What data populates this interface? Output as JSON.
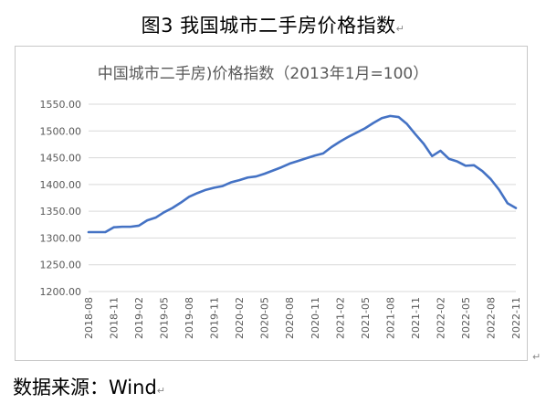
{
  "document": {
    "figure_title": "图3 我国城市二手房价格指数",
    "edit_mark": "↵",
    "source_text": "数据来源：Wind"
  },
  "chart_data": {
    "type": "line",
    "title": "中国城市二手房)价格指数（2013年1月=100）",
    "xlabel": "",
    "ylabel": "",
    "ylim": [
      1200,
      1550
    ],
    "yticks": [
      "1200.00",
      "1250.00",
      "1300.00",
      "1350.00",
      "1400.00",
      "1450.00",
      "1500.00",
      "1550.00"
    ],
    "xtick_labels": [
      "2018-08",
      "2018-11",
      "2019-02",
      "2019-05",
      "2019-08",
      "2019-11",
      "2020-02",
      "2020-05",
      "2020-08",
      "2020-11",
      "2021-02",
      "2021-05",
      "2021-08",
      "2021-11",
      "2022-02",
      "2022-05",
      "2022-08",
      "2022-11"
    ],
    "grid": true,
    "legend": "none",
    "line_color": "#4472c4",
    "x": [
      "2018-08",
      "2018-09",
      "2018-10",
      "2018-11",
      "2018-12",
      "2019-01",
      "2019-02",
      "2019-03",
      "2019-04",
      "2019-05",
      "2019-06",
      "2019-07",
      "2019-08",
      "2019-09",
      "2019-10",
      "2019-11",
      "2019-12",
      "2020-01",
      "2020-02",
      "2020-03",
      "2020-04",
      "2020-05",
      "2020-06",
      "2020-07",
      "2020-08",
      "2020-09",
      "2020-10",
      "2020-11",
      "2020-12",
      "2021-01",
      "2021-02",
      "2021-03",
      "2021-04",
      "2021-05",
      "2021-06",
      "2021-07",
      "2021-08",
      "2021-09",
      "2021-10",
      "2021-11",
      "2021-12",
      "2022-01",
      "2022-02",
      "2022-03",
      "2022-04",
      "2022-05",
      "2022-06",
      "2022-07",
      "2022-08",
      "2022-09",
      "2022-10",
      "2022-11"
    ],
    "values": [
      1311,
      1311,
      1311,
      1320,
      1321,
      1321,
      1323,
      1333,
      1338,
      1348,
      1356,
      1366,
      1377,
      1384,
      1390,
      1394,
      1397,
      1404,
      1408,
      1413,
      1415,
      1420,
      1426,
      1432,
      1439,
      1444,
      1449,
      1454,
      1458,
      1470,
      1480,
      1489,
      1497,
      1505,
      1515,
      1524,
      1528,
      1526,
      1513,
      1494,
      1476,
      1453,
      1463,
      1448,
      1443,
      1435,
      1436,
      1425,
      1410,
      1390,
      1365,
      1356
    ]
  }
}
